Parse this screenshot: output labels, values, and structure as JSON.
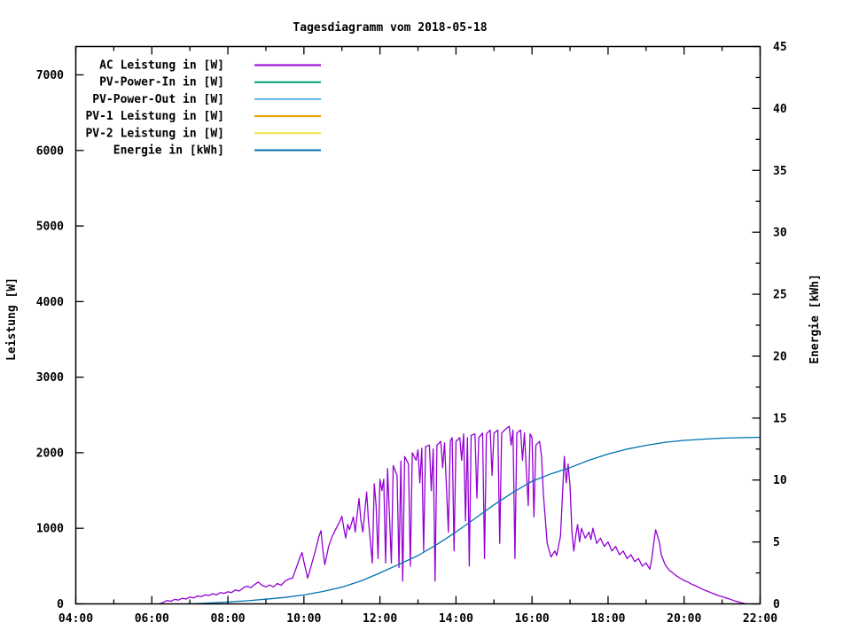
{
  "window": {
    "background": "#ffffff",
    "foreground": "#000000"
  },
  "chart_data": {
    "type": "line",
    "title": "Tagesdiagramm vom 2018-05-18",
    "grid": false,
    "legend_position": "top-left-inside",
    "x_axis": {
      "range": [
        4,
        22
      ],
      "tick_values": [
        4,
        6,
        8,
        10,
        12,
        14,
        16,
        18,
        20,
        22
      ],
      "tick_labels": [
        "04:00",
        "06:00",
        "08:00",
        "10:00",
        "12:00",
        "14:00",
        "16:00",
        "18:00",
        "20:00",
        "22:00"
      ],
      "minor_tick_values": [
        5,
        7,
        9,
        11,
        13,
        15,
        17,
        19,
        21
      ]
    },
    "y_axis": {
      "label": "Leistung [W]",
      "range": [
        0,
        7375
      ],
      "tick_values": [
        0,
        1000,
        2000,
        3000,
        4000,
        5000,
        6000,
        7000
      ],
      "tick_labels": [
        "0",
        "1000",
        "2000",
        "3000",
        "4000",
        "5000",
        "6000",
        "7000"
      ]
    },
    "y2_axis": {
      "label": "Energie [kWh]",
      "range": [
        0,
        45
      ],
      "tick_values": [
        0,
        5,
        10,
        15,
        20,
        25,
        30,
        35,
        40,
        45
      ],
      "tick_labels": [
        "0",
        "5",
        "10",
        "15",
        "20",
        "25",
        "30",
        "35",
        "40",
        "45"
      ],
      "minor_tick_values": [
        2.5,
        7.5,
        12.5,
        17.5,
        22.5,
        27.5,
        32.5,
        37.5,
        42.5
      ]
    },
    "legend": [
      {
        "label": "AC Leistung in [W]",
        "color": "#9400d3"
      },
      {
        "label": "PV-Power-In in [W]",
        "color": "#009e73"
      },
      {
        "label": "PV-Power-Out in [W]",
        "color": "#56b4e9"
      },
      {
        "label": "PV-1 Leistung in [W]",
        "color": "#e69f00"
      },
      {
        "label": "PV-2 Leistung in [W]",
        "color": "#f0e442"
      },
      {
        "label": "Energie in [kWh]",
        "color": "#0072b2"
      }
    ],
    "series": [
      {
        "name": "AC Leistung in [W]",
        "color": "#9400d3",
        "axis": "y",
        "points": [
          [
            6.2,
            0
          ],
          [
            6.3,
            20
          ],
          [
            6.4,
            45
          ],
          [
            6.5,
            35
          ],
          [
            6.6,
            60
          ],
          [
            6.7,
            50
          ],
          [
            6.8,
            75
          ],
          [
            6.9,
            65
          ],
          [
            7.0,
            90
          ],
          [
            7.1,
            80
          ],
          [
            7.2,
            105
          ],
          [
            7.3,
            95
          ],
          [
            7.4,
            120
          ],
          [
            7.5,
            110
          ],
          [
            7.6,
            135
          ],
          [
            7.7,
            120
          ],
          [
            7.8,
            150
          ],
          [
            7.9,
            140
          ],
          [
            8.0,
            160
          ],
          [
            8.1,
            150
          ],
          [
            8.2,
            185
          ],
          [
            8.3,
            170
          ],
          [
            8.4,
            210
          ],
          [
            8.5,
            235
          ],
          [
            8.6,
            215
          ],
          [
            8.7,
            255
          ],
          [
            8.8,
            290
          ],
          [
            8.9,
            245
          ],
          [
            9.0,
            225
          ],
          [
            9.1,
            250
          ],
          [
            9.2,
            225
          ],
          [
            9.3,
            270
          ],
          [
            9.4,
            245
          ],
          [
            9.5,
            300
          ],
          [
            9.6,
            330
          ],
          [
            9.7,
            340
          ],
          [
            9.8,
            480
          ],
          [
            9.9,
            620
          ],
          [
            9.95,
            680
          ],
          [
            10.0,
            560
          ],
          [
            10.1,
            340
          ],
          [
            10.2,
            520
          ],
          [
            10.3,
            700
          ],
          [
            10.4,
            900
          ],
          [
            10.45,
            970
          ],
          [
            10.5,
            700
          ],
          [
            10.55,
            520
          ],
          [
            10.65,
            760
          ],
          [
            10.75,
            900
          ],
          [
            10.85,
            1000
          ],
          [
            10.95,
            1100
          ],
          [
            11.0,
            1160
          ],
          [
            11.05,
            1000
          ],
          [
            11.1,
            870
          ],
          [
            11.15,
            1050
          ],
          [
            11.2,
            980
          ],
          [
            11.3,
            1150
          ],
          [
            11.35,
            950
          ],
          [
            11.45,
            1395
          ],
          [
            11.5,
            1100
          ],
          [
            11.55,
            950
          ],
          [
            11.65,
            1480
          ],
          [
            11.7,
            1100
          ],
          [
            11.8,
            540
          ],
          [
            11.85,
            1590
          ],
          [
            11.9,
            1300
          ],
          [
            11.95,
            600
          ],
          [
            12.0,
            1650
          ],
          [
            12.05,
            1500
          ],
          [
            12.1,
            1650
          ],
          [
            12.15,
            540
          ],
          [
            12.2,
            1790
          ],
          [
            12.3,
            540
          ],
          [
            12.35,
            1830
          ],
          [
            12.45,
            1700
          ],
          [
            12.5,
            480
          ],
          [
            12.55,
            1890
          ],
          [
            12.6,
            300
          ],
          [
            12.65,
            1950
          ],
          [
            12.75,
            1850
          ],
          [
            12.8,
            500
          ],
          [
            12.85,
            2000
          ],
          [
            12.95,
            1900
          ],
          [
            13.0,
            2040
          ],
          [
            13.05,
            1600
          ],
          [
            13.1,
            2060
          ],
          [
            13.15,
            700
          ],
          [
            13.2,
            2080
          ],
          [
            13.3,
            2100
          ],
          [
            13.35,
            1500
          ],
          [
            13.4,
            2050
          ],
          [
            13.45,
            300
          ],
          [
            13.5,
            2100
          ],
          [
            13.6,
            2150
          ],
          [
            13.65,
            1800
          ],
          [
            13.7,
            2130
          ],
          [
            13.8,
            950
          ],
          [
            13.85,
            2160
          ],
          [
            13.9,
            2200
          ],
          [
            13.95,
            700
          ],
          [
            14.0,
            2150
          ],
          [
            14.1,
            2200
          ],
          [
            14.15,
            1900
          ],
          [
            14.2,
            2250
          ],
          [
            14.25,
            1100
          ],
          [
            14.3,
            2200
          ],
          [
            14.35,
            500
          ],
          [
            14.4,
            2230
          ],
          [
            14.5,
            2250
          ],
          [
            14.55,
            1400
          ],
          [
            14.6,
            2200
          ],
          [
            14.7,
            2260
          ],
          [
            14.75,
            600
          ],
          [
            14.8,
            2250
          ],
          [
            14.9,
            2300
          ],
          [
            14.95,
            1700
          ],
          [
            15.0,
            2260
          ],
          [
            15.1,
            2300
          ],
          [
            15.15,
            800
          ],
          [
            15.2,
            2260
          ],
          [
            15.3,
            2310
          ],
          [
            15.4,
            2350
          ],
          [
            15.45,
            2100
          ],
          [
            15.5,
            2300
          ],
          [
            15.55,
            600
          ],
          [
            15.6,
            2260
          ],
          [
            15.7,
            2300
          ],
          [
            15.75,
            1900
          ],
          [
            15.8,
            2260
          ],
          [
            15.9,
            1300
          ],
          [
            15.95,
            2250
          ],
          [
            16.0,
            2200
          ],
          [
            16.05,
            1150
          ],
          [
            16.1,
            2100
          ],
          [
            16.2,
            2150
          ],
          [
            16.25,
            1950
          ],
          [
            16.3,
            1450
          ],
          [
            16.4,
            800
          ],
          [
            16.5,
            620
          ],
          [
            16.6,
            700
          ],
          [
            16.65,
            640
          ],
          [
            16.75,
            900
          ],
          [
            16.85,
            1950
          ],
          [
            16.9,
            1600
          ],
          [
            16.95,
            1850
          ],
          [
            17.0,
            1550
          ],
          [
            17.05,
            950
          ],
          [
            17.1,
            700
          ],
          [
            17.15,
            900
          ],
          [
            17.2,
            1050
          ],
          [
            17.25,
            820
          ],
          [
            17.3,
            1000
          ],
          [
            17.4,
            870
          ],
          [
            17.5,
            950
          ],
          [
            17.55,
            850
          ],
          [
            17.6,
            1000
          ],
          [
            17.7,
            800
          ],
          [
            17.8,
            870
          ],
          [
            17.9,
            760
          ],
          [
            18.0,
            820
          ],
          [
            18.1,
            700
          ],
          [
            18.2,
            760
          ],
          [
            18.3,
            650
          ],
          [
            18.4,
            700
          ],
          [
            18.5,
            600
          ],
          [
            18.6,
            650
          ],
          [
            18.7,
            560
          ],
          [
            18.8,
            600
          ],
          [
            18.9,
            500
          ],
          [
            19.0,
            540
          ],
          [
            19.1,
            460
          ],
          [
            19.15,
            600
          ],
          [
            19.2,
            800
          ],
          [
            19.25,
            980
          ],
          [
            19.3,
            900
          ],
          [
            19.35,
            820
          ],
          [
            19.4,
            650
          ],
          [
            19.5,
            520
          ],
          [
            19.6,
            450
          ],
          [
            19.7,
            410
          ],
          [
            19.8,
            370
          ],
          [
            19.9,
            340
          ],
          [
            20.0,
            310
          ],
          [
            20.1,
            290
          ],
          [
            20.2,
            260
          ],
          [
            20.3,
            240
          ],
          [
            20.4,
            215
          ],
          [
            20.5,
            190
          ],
          [
            20.6,
            170
          ],
          [
            20.7,
            150
          ],
          [
            20.8,
            130
          ],
          [
            20.9,
            110
          ],
          [
            21.0,
            95
          ],
          [
            21.1,
            80
          ],
          [
            21.2,
            65
          ],
          [
            21.3,
            45
          ],
          [
            21.4,
            30
          ],
          [
            21.5,
            15
          ],
          [
            21.6,
            5
          ]
        ]
      },
      {
        "name": "PV-Power-In in [W]",
        "color": "#009e73",
        "axis": "y",
        "points": []
      },
      {
        "name": "PV-Power-Out in [W]",
        "color": "#56b4e9",
        "axis": "y",
        "points": []
      },
      {
        "name": "PV-1 Leistung in [W]",
        "color": "#e69f00",
        "axis": "y",
        "points": []
      },
      {
        "name": "PV-2 Leistung in [W]",
        "color": "#f0e442",
        "axis": "y",
        "points": []
      },
      {
        "name": "Energie in [kWh]",
        "color": "#0072b2",
        "axis": "y2",
        "points": [
          [
            6.9,
            0
          ],
          [
            7.2,
            0.03
          ],
          [
            7.5,
            0.07
          ],
          [
            8.0,
            0.15
          ],
          [
            8.5,
            0.25
          ],
          [
            9.0,
            0.38
          ],
          [
            9.5,
            0.52
          ],
          [
            10.0,
            0.72
          ],
          [
            10.5,
            1.0
          ],
          [
            11.0,
            1.35
          ],
          [
            11.5,
            1.85
          ],
          [
            12.0,
            2.5
          ],
          [
            12.5,
            3.2
          ],
          [
            13.0,
            3.9
          ],
          [
            13.5,
            4.8
          ],
          [
            14.0,
            5.8
          ],
          [
            14.5,
            6.9
          ],
          [
            15.0,
            8.0
          ],
          [
            15.5,
            9.0
          ],
          [
            16.0,
            9.9
          ],
          [
            16.5,
            10.5
          ],
          [
            17.0,
            11.0
          ],
          [
            17.5,
            11.6
          ],
          [
            18.0,
            12.1
          ],
          [
            18.5,
            12.5
          ],
          [
            19.0,
            12.8
          ],
          [
            19.5,
            13.05
          ],
          [
            20.0,
            13.2
          ],
          [
            20.5,
            13.3
          ],
          [
            21.0,
            13.38
          ],
          [
            21.5,
            13.42
          ],
          [
            22.0,
            13.45
          ]
        ]
      }
    ]
  }
}
